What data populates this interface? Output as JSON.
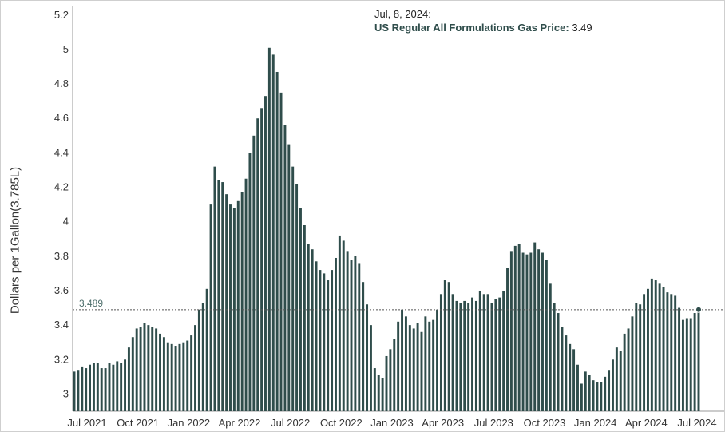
{
  "tooltip": {
    "date": "Jul, 8, 2024:",
    "series_name": "US Regular All Formulations Gas Price",
    "value": "3.49"
  },
  "chart_data": {
    "type": "bar",
    "ylabel": "Dollars per 1Gallon(3.785L)",
    "ylim": [
      2.9,
      5.25
    ],
    "yticks": [
      "3",
      "3.2",
      "3.4",
      "3.6",
      "3.8",
      "4",
      "4.2",
      "4.4",
      "4.6",
      "4.8",
      "5",
      "5.2"
    ],
    "xtick_labels": [
      "Jul 2021",
      "Oct 2021",
      "Jan 2022",
      "Apr 2022",
      "Jul 2022",
      "Oct 2022",
      "Jan 2023",
      "Apr 2023",
      "Jul 2023",
      "Oct 2023",
      "Jan 2024",
      "Apr 2024",
      "Jul 2024"
    ],
    "reference_line": {
      "value": 3.489,
      "label": "3.489",
      "style": "dotted"
    },
    "bar_color": "#2f4d4b",
    "values": [
      3.13,
      3.14,
      3.16,
      3.15,
      3.17,
      3.18,
      3.18,
      3.15,
      3.15,
      3.18,
      3.17,
      3.19,
      3.18,
      3.2,
      3.27,
      3.33,
      3.38,
      3.39,
      3.41,
      3.4,
      3.39,
      3.38,
      3.35,
      3.33,
      3.3,
      3.29,
      3.28,
      3.29,
      3.3,
      3.31,
      3.34,
      3.4,
      3.49,
      3.53,
      3.61,
      4.1,
      4.32,
      4.24,
      4.23,
      4.16,
      4.1,
      4.08,
      4.12,
      4.17,
      4.25,
      4.4,
      4.5,
      4.6,
      4.66,
      4.73,
      5.01,
      4.97,
      4.87,
      4.75,
      4.56,
      4.45,
      4.32,
      4.22,
      4.08,
      3.98,
      3.87,
      3.84,
      3.77,
      3.72,
      3.7,
      3.66,
      3.72,
      3.79,
      3.92,
      3.89,
      3.83,
      3.78,
      3.8,
      3.76,
      3.65,
      3.52,
      3.4,
      3.15,
      3.11,
      3.09,
      3.22,
      3.26,
      3.32,
      3.42,
      3.49,
      3.45,
      3.4,
      3.38,
      3.41,
      3.36,
      3.45,
      3.42,
      3.43,
      3.49,
      3.58,
      3.66,
      3.65,
      3.58,
      3.54,
      3.53,
      3.54,
      3.53,
      3.56,
      3.54,
      3.6,
      3.58,
      3.58,
      3.53,
      3.55,
      3.56,
      3.6,
      3.73,
      3.83,
      3.86,
      3.87,
      3.82,
      3.81,
      3.82,
      3.88,
      3.84,
      3.82,
      3.78,
      3.64,
      3.53,
      3.47,
      3.39,
      3.34,
      3.29,
      3.26,
      3.17,
      3.06,
      3.13,
      3.11,
      3.08,
      3.07,
      3.07,
      3.1,
      3.14,
      3.2,
      3.27,
      3.25,
      3.35,
      3.38,
      3.45,
      3.53,
      3.52,
      3.58,
      3.61,
      3.67,
      3.66,
      3.64,
      3.62,
      3.59,
      3.58,
      3.57,
      3.5,
      3.43,
      3.44,
      3.44,
      3.47,
      3.49
    ]
  }
}
